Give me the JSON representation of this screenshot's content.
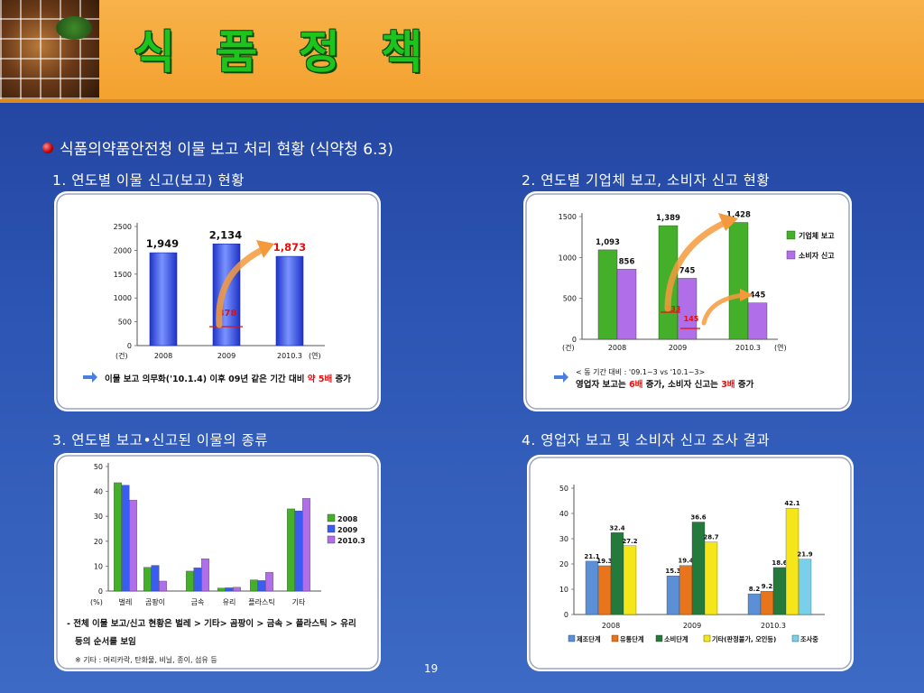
{
  "slide": {
    "title": "식 품 정 책",
    "subtitle": "식품의약품안전청 이물 보고 처리 현황 (식약청 6.3)",
    "page_number": "19",
    "sections": [
      "1. 연도별 이물 신고(보고) 현황",
      "2. 연도별 기업체 보고, 소비자 신고 현황",
      "3. 연도별 보고•신고된 이물의 종류",
      "4. 영업자 보고 및 소비자 신고 조사 결과"
    ]
  },
  "colors": {
    "header_orange": "#f5a633",
    "title_green": "#1ec41e",
    "bar_blue": "#3a5cf0",
    "bar_green": "#44b02a",
    "bar_purple": "#b06ee8",
    "highlight_red": "#e01010",
    "arrow_orange": "#f59a3c"
  },
  "chart_data": [
    {
      "type": "bar",
      "categories": [
        "2008",
        "2009",
        "2010.3"
      ],
      "values": [
        1949,
        2134,
        1873
      ],
      "value_labels": [
        "1,949",
        "2,134",
        "1,873"
      ],
      "highlight_value": "378",
      "ylim": [
        0,
        2500
      ],
      "yticks": [
        "0",
        "500",
        "1000",
        "1500",
        "2000",
        "2500"
      ],
      "ylabel_unit": "(건)",
      "xlabel_unit": "(연)",
      "note": "이물 보고 의무화('10.1.4) 이후 09년 같은 기간 대비 약 5배 증가",
      "note_parts": [
        "이물 보고 의무화('10.1.4) 이후 09년 같은 기간 대비 ",
        "약 5배",
        " 증가"
      ]
    },
    {
      "type": "bar",
      "categories": [
        "2008",
        "2009",
        "2010.3"
      ],
      "series": [
        {
          "name": "기업체 보고",
          "values": [
            1093,
            1389,
            1428
          ],
          "labels": [
            "1,093",
            "1,389",
            "1,428"
          ],
          "color": "#44b02a"
        },
        {
          "name": "소비자 신고",
          "values": [
            856,
            745,
            445
          ],
          "labels": [
            "856",
            "745",
            "445"
          ],
          "color": "#b06ee8"
        }
      ],
      "highlight_values": [
        "233",
        "145"
      ],
      "ylim": [
        0,
        1500
      ],
      "yticks": [
        "0",
        "500",
        "1000",
        "1500"
      ],
      "ylabel_unit": "(건)",
      "xlabel_unit": "(연)",
      "note_line1": "< 동 기간 대비 : '09.1~3 vs '10.1~3>",
      "note_line2_parts": [
        "영업자 보고는 ",
        "6배",
        " 증가, 소비자 신고는 ",
        "3배",
        " 증가"
      ]
    },
    {
      "type": "bar",
      "categories": [
        "벌레",
        "곰팡이",
        "금속",
        "유리",
        "플라스틱",
        "기타"
      ],
      "series": [
        {
          "name": "2008",
          "values": [
            43.5,
            9.5,
            8,
            1.2,
            4.5,
            33
          ],
          "color": "#44b02a"
        },
        {
          "name": "2009",
          "values": [
            42.5,
            10.3,
            9.3,
            1.3,
            4.2,
            32.2
          ],
          "color": "#3a5cf0"
        },
        {
          "name": "2010.3",
          "values": [
            36.5,
            4,
            13,
            1.5,
            7.5,
            37.2
          ],
          "color": "#b06ee8"
        }
      ],
      "ylim": [
        0,
        50
      ],
      "yticks": [
        "0",
        "10",
        "20",
        "30",
        "40",
        "50"
      ],
      "xlabel_unit": "(%)",
      "note_line1": "- 전체 이물 보고/신고 현황은 벌레 > 기타> 곰팡이 > 금속 > 플라스틱 > 유리",
      "note_line2": "등의 순서를 보임",
      "footnote": "※ 기타 : 머리카락, 탄화물, 비닐, 종이, 섬유 등"
    },
    {
      "type": "bar",
      "categories": [
        "2008",
        "2009",
        "2010.3"
      ],
      "series": [
        {
          "name": "제조단계",
          "values": [
            21.1,
            15.3,
            8.2
          ],
          "color": "#5b8fd6"
        },
        {
          "name": "유통단계",
          "values": [
            19.3,
            19.4,
            9.2
          ],
          "color": "#e8741c"
        },
        {
          "name": "소비단계",
          "values": [
            32.4,
            36.6,
            18.6
          ],
          "color": "#237a3a"
        },
        {
          "name": "기타(판정불가, 오인등)",
          "values": [
            27.2,
            28.7,
            42.1
          ],
          "color": "#f5e61a"
        },
        {
          "name": "조사중",
          "values": [
            0,
            0,
            21.9
          ],
          "color": "#7ccfe8"
        }
      ],
      "value_labels": [
        [
          "21.1",
          "15.3",
          "8.2"
        ],
        [
          "19.3",
          "19.4",
          "9.2"
        ],
        [
          "32.4",
          "36.6",
          "18.6"
        ],
        [
          "27.2",
          "28.7",
          "42.1"
        ],
        [
          "",
          "",
          "21.9"
        ]
      ],
      "ylim": [
        0,
        50
      ],
      "yticks": [
        "0",
        "10",
        "20",
        "30",
        "40",
        "50"
      ]
    }
  ]
}
